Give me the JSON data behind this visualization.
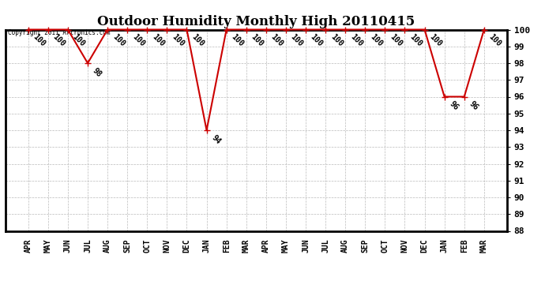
{
  "title": "Outdoor Humidity Monthly High 20110415",
  "copyright": "Copyright 2011 Artronics.com",
  "labels": [
    "APR",
    "MAY",
    "JUN",
    "JUL",
    "AUG",
    "SEP",
    "OCT",
    "NOV",
    "DEC",
    "JAN",
    "FEB",
    "MAR",
    "APR",
    "MAY",
    "JUN",
    "JUL",
    "AUG",
    "SEP",
    "OCT",
    "NOV",
    "DEC",
    "JAN",
    "FEB",
    "MAR"
  ],
  "values": [
    100,
    100,
    100,
    98,
    100,
    100,
    100,
    100,
    100,
    94,
    100,
    100,
    100,
    100,
    100,
    100,
    100,
    100,
    100,
    100,
    100,
    96,
    96,
    100
  ],
  "ylim": [
    88,
    100
  ],
  "yticks": [
    88,
    89,
    90,
    91,
    92,
    93,
    94,
    95,
    96,
    97,
    98,
    99,
    100
  ],
  "line_color": "#cc0000",
  "marker": "+",
  "marker_color": "#cc0000",
  "marker_size": 6,
  "line_width": 1.5,
  "grid_color": "#bbbbbb",
  "bg_color": "#ffffff",
  "title_fontsize": 12,
  "label_fontsize": 7,
  "annotation_fontsize": 7,
  "tick_fontsize": 8
}
